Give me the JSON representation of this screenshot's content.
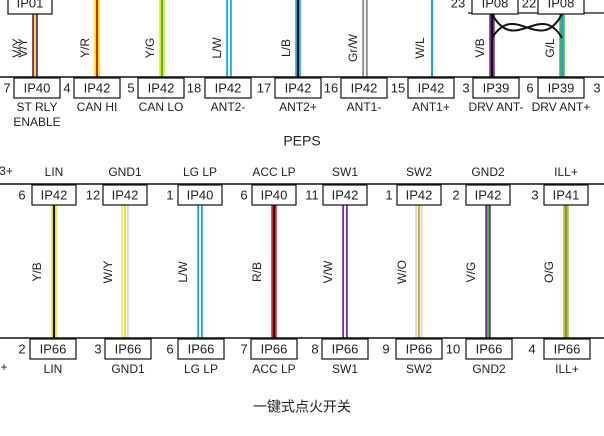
{
  "colors": {
    "violet": "#7a2c8a",
    "yellow": "#f2e600",
    "red": "#d8202a",
    "blue": "#1aa3dc",
    "gray": "#8c8c8c",
    "white": "#f6f6f6",
    "green": "#46b84a",
    "orange": "#e8a72a",
    "black": "#111111"
  },
  "top": {
    "partial_connector": {
      "pin": "",
      "code": "IP01",
      "wire": "V/Y"
    },
    "pins": [
      {
        "pin": "7",
        "code": "IP40",
        "wire": "V/Y",
        "label": "ST RLY",
        "label2": "ENABLE",
        "icon": "wire-violet-yellow"
      },
      {
        "pin": "4",
        "code": "IP42",
        "wire": "Y/R",
        "label": "CAN HI",
        "icon": "wire-yellow-red"
      },
      {
        "pin": "5",
        "code": "IP42",
        "wire": "Y/G",
        "label": "CAN LO",
        "icon": "wire-yellow-green"
      },
      {
        "pin": "18",
        "code": "IP42",
        "wire": "L/W",
        "label": "ANT2-",
        "icon": "wire-blue-white"
      },
      {
        "pin": "17",
        "code": "IP42",
        "wire": "L/B",
        "label": "ANT2+",
        "icon": "wire-blue-black"
      },
      {
        "pin": "16",
        "code": "IP42",
        "wire": "Gr/W",
        "label": "ANT1-",
        "icon": "wire-gray-white"
      },
      {
        "pin": "15",
        "code": "IP42",
        "wire": "W/L",
        "label": "ANT1+",
        "icon": "wire-white-blue"
      },
      {
        "pin": "3",
        "code": "IP39",
        "wire": "V/B",
        "label": "DRV ANT-",
        "icon": "wire-violet-black"
      },
      {
        "pin": "6",
        "code": "IP39",
        "wire": "G/L",
        "label": "DRV ANT+",
        "icon": "wire-green-blue"
      }
    ],
    "upper_pins": [
      {
        "pin": "23",
        "code": "IP08"
      },
      {
        "pin": "22",
        "code": "IP08"
      }
    ],
    "trailing_pin": "3",
    "module_name": "PEPS"
  },
  "bottom": {
    "left_partial_top": "3+",
    "left_partial_bottom": "+",
    "wires": [
      {
        "label": "LIN",
        "top_pin": "6",
        "top_code": "IP42",
        "wire": "Y/B",
        "bottom_pin": "2",
        "bottom_code": "IP66",
        "bottom_label": "LIN",
        "icon": "wire-yellow-black"
      },
      {
        "label": "GND1",
        "top_pin": "12",
        "top_code": "IP42",
        "wire": "W/Y",
        "bottom_pin": "3",
        "bottom_code": "IP66",
        "bottom_label": "GND1",
        "icon": "wire-white-yellow"
      },
      {
        "label": "LG LP",
        "top_pin": "1",
        "top_code": "IP40",
        "wire": "L/W",
        "bottom_pin": "6",
        "bottom_code": "IP66",
        "bottom_label": "LG LP",
        "icon": "wire-blue-white"
      },
      {
        "label": "ACC LP",
        "top_pin": "6",
        "top_code": "IP40",
        "wire": "R/B",
        "bottom_pin": "7",
        "bottom_code": "IP66",
        "bottom_label": "ACC LP",
        "icon": "wire-red-black"
      },
      {
        "label": "SW1",
        "top_pin": "11",
        "top_code": "IP42",
        "wire": "V/W",
        "bottom_pin": "8",
        "bottom_code": "IP66",
        "bottom_label": "SW1",
        "icon": "wire-violet-white"
      },
      {
        "label": "SW2",
        "top_pin": "1",
        "top_code": "IP42",
        "wire": "W/O",
        "bottom_pin": "9",
        "bottom_code": "IP66",
        "bottom_label": "SW2",
        "icon": "wire-white-orange"
      },
      {
        "label": "GND2",
        "top_pin": "2",
        "top_code": "IP42",
        "wire": "V/G",
        "bottom_pin": "10",
        "bottom_code": "IP66",
        "bottom_label": "GND2",
        "icon": "wire-violet-green"
      },
      {
        "label": "ILL+",
        "top_pin": "3",
        "top_code": "IP41",
        "wire": "O/G",
        "bottom_pin": "4",
        "bottom_code": "IP66",
        "bottom_label": "ILL+",
        "icon": "wire-orange-green"
      }
    ],
    "module_name": "一键式点火开关"
  }
}
